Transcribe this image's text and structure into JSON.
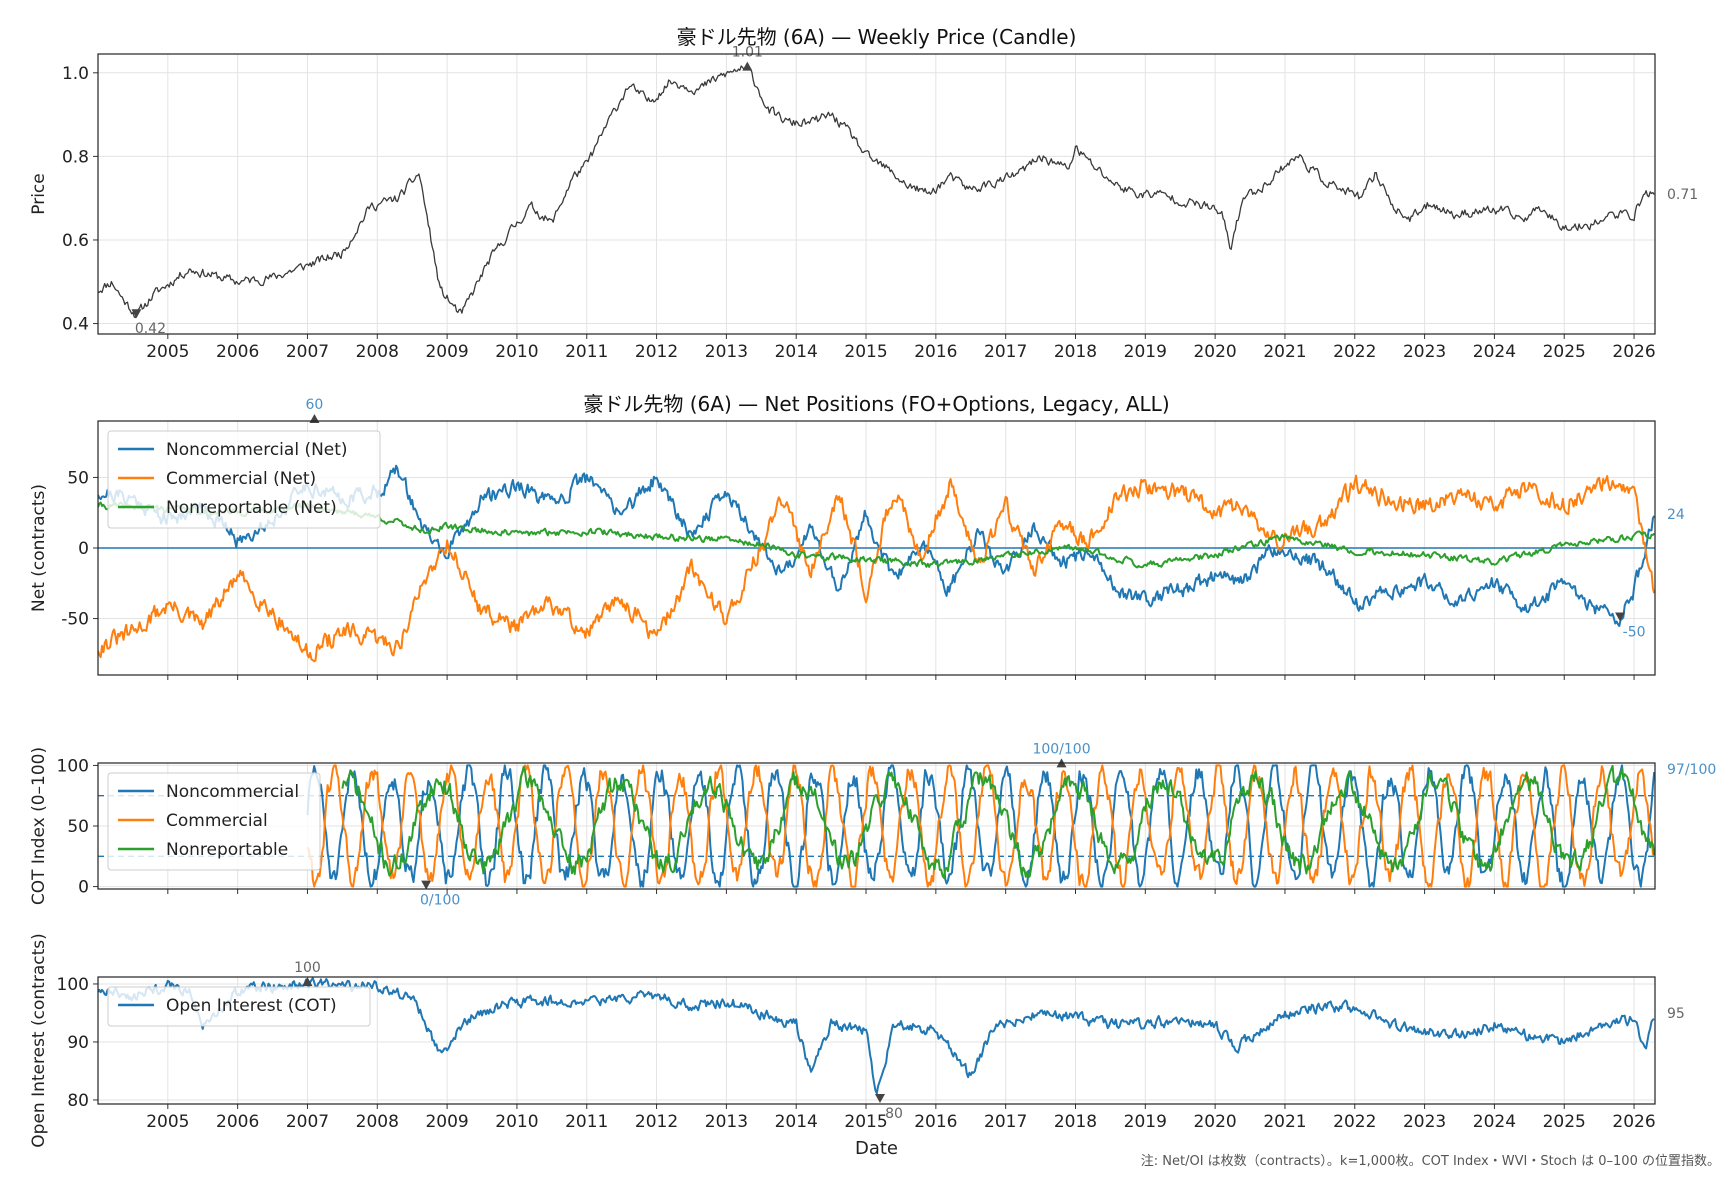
{
  "footnote": "注: Net/OI は枚数（contracts）。k=1,000枚。COT Index・WVI・Stoch は 0–100 の位置指数。",
  "colors": {
    "price": "#3a3a3a",
    "noncommercial": "#1f77b4",
    "commercial": "#ff7f0e",
    "nonreportable": "#2ca02c",
    "oi": "#1f77b4",
    "annotation": "#666666",
    "annotation_blue": "#4a90c8",
    "grid": "#e3e3e3"
  },
  "x_years": [
    "2005",
    "2006",
    "2007",
    "2008",
    "2009",
    "2010",
    "2011",
    "2012",
    "2013",
    "2014",
    "2015",
    "2016",
    "2017",
    "2018",
    "2019",
    "2020",
    "2021",
    "2022",
    "2023",
    "2024",
    "2025",
    "2026"
  ],
  "chart_data": [
    {
      "id": "price",
      "type": "line",
      "title": "豪ドル先物 (6A) — Weekly Price (Candle)",
      "xlabel": "",
      "ylabel": "Price",
      "xlim": [
        2004.0,
        2026.3
      ],
      "ylim": [
        0.375,
        1.045
      ],
      "yticks": [
        0.4,
        0.6,
        0.8,
        1.0
      ],
      "ytick_labels": [
        "0.4",
        "0.6",
        "0.8",
        "1.0"
      ],
      "series": [
        {
          "name": "Price",
          "color_key": "price",
          "noise": 0.012,
          "seed": 11,
          "x": [
            2004.0,
            2004.2,
            2004.35,
            2004.55,
            2004.8,
            2005.3,
            2006.0,
            2006.5,
            2007.0,
            2007.5,
            2007.9,
            2008.3,
            2008.6,
            2008.9,
            2009.2,
            2009.6,
            2009.9,
            2010.2,
            2010.5,
            2010.8,
            2011.0,
            2011.3,
            2011.6,
            2011.9,
            2012.2,
            2012.6,
            2012.9,
            2013.2,
            2013.35,
            2013.6,
            2013.9,
            2014.2,
            2014.5,
            2014.8,
            2015.0,
            2015.3,
            2015.6,
            2015.9,
            2016.2,
            2016.5,
            2016.9,
            2017.2,
            2017.5,
            2017.9,
            2018.0,
            2018.3,
            2018.6,
            2018.9,
            2019.2,
            2019.6,
            2019.9,
            2020.1,
            2020.22,
            2020.4,
            2020.7,
            2021.0,
            2021.2,
            2021.5,
            2021.8,
            2022.1,
            2022.3,
            2022.6,
            2022.8,
            2023.1,
            2023.4,
            2023.8,
            2024.1,
            2024.4,
            2024.7,
            2024.9,
            2025.1,
            2025.4,
            2025.7,
            2026.0,
            2026.15,
            2026.3
          ],
          "y": [
            0.48,
            0.5,
            0.46,
            0.42,
            0.47,
            0.53,
            0.5,
            0.51,
            0.54,
            0.57,
            0.68,
            0.7,
            0.76,
            0.48,
            0.42,
            0.55,
            0.62,
            0.68,
            0.64,
            0.75,
            0.78,
            0.88,
            0.97,
            0.93,
            0.98,
            0.96,
            0.99,
            1.01,
            1.0,
            0.91,
            0.88,
            0.88,
            0.9,
            0.85,
            0.8,
            0.77,
            0.73,
            0.71,
            0.75,
            0.72,
            0.74,
            0.76,
            0.8,
            0.77,
            0.82,
            0.77,
            0.73,
            0.71,
            0.71,
            0.69,
            0.68,
            0.66,
            0.58,
            0.7,
            0.73,
            0.78,
            0.8,
            0.75,
            0.72,
            0.7,
            0.76,
            0.67,
            0.65,
            0.69,
            0.66,
            0.67,
            0.67,
            0.65,
            0.68,
            0.64,
            0.63,
            0.64,
            0.66,
            0.66,
            0.71,
            0.71
          ]
        }
      ],
      "annotations": [
        {
          "text": "1.01",
          "x": 2013.3,
          "y": 1.01,
          "pos": "above"
        },
        {
          "text": "0.42",
          "x": 2004.55,
          "y": 0.42,
          "pos": "below"
        },
        {
          "text": "0.71",
          "x": 2026.3,
          "y": 0.71,
          "pos": "right"
        }
      ]
    },
    {
      "id": "net",
      "type": "line",
      "title": "豪ドル先物 (6A) — Net Positions (FO+Options, Legacy, ALL)",
      "xlabel": "",
      "ylabel": "Net (contracts)",
      "xlim": [
        2004.0,
        2026.3
      ],
      "ylim": [
        -90,
        90
      ],
      "yticks": [
        -50,
        0,
        50
      ],
      "ytick_labels": [
        "-50",
        "0",
        "50"
      ],
      "zero_line": 0,
      "legend": [
        "Noncommercial (Net)",
        "Commercial (Net)",
        "Nonreportable (Net)"
      ],
      "series": [
        {
          "name": "Noncommercial (Net)",
          "color_key": "noncommercial",
          "noise": 6,
          "seed": 21,
          "x": [
            2004.0,
            2004.5,
            2005.0,
            2005.5,
            2006.0,
            2006.5,
            2007.0,
            2007.5,
            2008.0,
            2008.3,
            2008.7,
            2009.0,
            2009.5,
            2010.0,
            2010.5,
            2011.0,
            2011.5,
            2012.0,
            2012.5,
            2013.0,
            2013.4,
            2013.8,
            2014.2,
            2014.6,
            2015.0,
            2015.4,
            2015.8,
            2016.2,
            2016.6,
            2017.0,
            2017.4,
            2017.8,
            2018.2,
            2018.6,
            2019.0,
            2019.5,
            2020.0,
            2020.4,
            2020.8,
            2021.2,
            2021.6,
            2022.0,
            2022.5,
            2023.0,
            2023.5,
            2024.0,
            2024.5,
            2025.0,
            2025.5,
            2025.8,
            2026.0,
            2026.3
          ],
          "y": [
            40,
            35,
            20,
            30,
            5,
            20,
            45,
            35,
            40,
            55,
            10,
            -5,
            35,
            45,
            30,
            50,
            25,
            50,
            10,
            40,
            10,
            -20,
            15,
            -30,
            25,
            -25,
            5,
            -30,
            10,
            -20,
            15,
            -10,
            -5,
            -30,
            -35,
            -30,
            -20,
            -25,
            0,
            -5,
            -15,
            -40,
            -30,
            -25,
            -35,
            -25,
            -45,
            -25,
            -45,
            -50,
            -30,
            24
          ]
        },
        {
          "name": "Commercial (Net)",
          "color_key": "commercial",
          "noise": 7,
          "seed": 31,
          "x": [
            2004.0,
            2004.5,
            2005.0,
            2005.5,
            2006.0,
            2006.5,
            2007.0,
            2007.5,
            2008.0,
            2008.3,
            2008.7,
            2009.0,
            2009.5,
            2010.0,
            2010.5,
            2011.0,
            2011.5,
            2012.0,
            2012.5,
            2013.0,
            2013.4,
            2013.8,
            2014.2,
            2014.6,
            2015.0,
            2015.4,
            2015.8,
            2016.2,
            2016.6,
            2017.0,
            2017.4,
            2017.8,
            2018.2,
            2018.6,
            2019.0,
            2019.5,
            2020.0,
            2020.4,
            2020.8,
            2021.2,
            2021.6,
            2022.0,
            2022.5,
            2023.0,
            2023.5,
            2024.0,
            2024.5,
            2025.0,
            2025.5,
            2025.8,
            2026.0,
            2026.3
          ],
          "y": [
            -70,
            -60,
            -40,
            -55,
            -20,
            -45,
            -75,
            -60,
            -65,
            -70,
            -20,
            5,
            -45,
            -55,
            -40,
            -60,
            -35,
            -65,
            -15,
            -50,
            -10,
            35,
            -15,
            40,
            -30,
            40,
            -5,
            45,
            -10,
            30,
            -15,
            15,
            5,
            35,
            45,
            40,
            25,
            30,
            5,
            10,
            20,
            45,
            35,
            30,
            40,
            30,
            45,
            30,
            45,
            50,
            35,
            -35
          ]
        },
        {
          "name": "Nonreportable (Net)",
          "color_key": "nonreportable",
          "noise": 2.5,
          "seed": 41,
          "x": [
            2004.0,
            2005.0,
            2006.0,
            2007.0,
            2008.0,
            2008.7,
            2009.0,
            2010.0,
            2011.0,
            2012.0,
            2013.0,
            2013.5,
            2014.0,
            2015.0,
            2016.0,
            2017.0,
            2018.0,
            2019.0,
            2020.0,
            2021.0,
            2022.0,
            2023.0,
            2024.0,
            2025.0,
            2026.0,
            2026.3
          ],
          "y": [
            30,
            28,
            25,
            30,
            22,
            12,
            15,
            10,
            12,
            8,
            6,
            2,
            -5,
            -8,
            -12,
            -6,
            0,
            -12,
            -5,
            8,
            -2,
            -5,
            -10,
            2,
            8,
            10
          ]
        }
      ],
      "annotations": [
        {
          "text": "60",
          "x": 2007.1,
          "y": 90,
          "pos": "above",
          "color_key": "annotation_blue"
        },
        {
          "text": "-50",
          "x": 2025.8,
          "y": -50,
          "pos": "below",
          "color_key": "annotation_blue"
        },
        {
          "text": "24",
          "x": 2026.3,
          "y": 24,
          "pos": "right",
          "color_key": "annotation_blue"
        }
      ]
    },
    {
      "id": "cot",
      "type": "line",
      "title": "",
      "xlabel": "",
      "ylabel": "COT Index (0–100)",
      "xlim": [
        2004.0,
        2026.3
      ],
      "ylim": [
        -2,
        102
      ],
      "yticks": [
        0,
        50,
        100
      ],
      "ytick_labels": [
        "0",
        "50",
        "100"
      ],
      "hlines": [
        25,
        75
      ],
      "legend": [
        "Noncommercial",
        "Commercial",
        "Nonreportable"
      ],
      "series": [
        {
          "name": "Noncommercial",
          "color_key": "noncommercial",
          "osc": true,
          "start": 2007.0,
          "noise": 18,
          "seed": 51,
          "period": 0.55,
          "phase": 0.3,
          "center": 50,
          "amp": 45
        },
        {
          "name": "Commercial",
          "color_key": "commercial",
          "osc": true,
          "start": 2007.0,
          "noise": 18,
          "seed": 61,
          "period": 0.55,
          "phase": 3.44,
          "center": 50,
          "amp": 45
        },
        {
          "name": "Nonreportable",
          "color_key": "nonreportable",
          "osc": true,
          "start": 2007.5,
          "noise": 16,
          "seed": 71,
          "period": 1.3,
          "phase": 1.2,
          "center": 52,
          "amp": 35
        }
      ],
      "annotations": [
        {
          "text": "100/100",
          "x": 2017.8,
          "y": 100,
          "pos": "above",
          "color_key": "annotation_blue"
        },
        {
          "text": "0/100",
          "x": 2008.7,
          "y": 0,
          "pos": "below",
          "color_key": "annotation_blue"
        },
        {
          "text": "97/100",
          "x": 2026.3,
          "y": 97,
          "pos": "right",
          "color_key": "annotation_blue"
        }
      ]
    },
    {
      "id": "oi",
      "type": "line",
      "title": "",
      "xlabel": "Date",
      "ylabel": "Open Interest (contracts)",
      "xlim": [
        2004.0,
        2026.3
      ],
      "ylim": [
        79.3,
        101.2
      ],
      "yticks": [
        80,
        90,
        100
      ],
      "ytick_labels": [
        "80",
        "90",
        "100"
      ],
      "legend": [
        "Open Interest (COT)"
      ],
      "series": [
        {
          "name": "Open Interest (COT)",
          "color_key": "oi",
          "noise": 1.0,
          "seed": 81,
          "x": [
            2004.0,
            2004.5,
            2005.0,
            2005.3,
            2005.5,
            2006.0,
            2007.0,
            2008.0,
            2008.5,
            2008.9,
            2009.3,
            2010.0,
            2011.0,
            2012.0,
            2012.5,
            2013.0,
            2013.5,
            2014.0,
            2014.2,
            2014.5,
            2015.0,
            2015.15,
            2015.4,
            2016.0,
            2016.5,
            2016.8,
            2017.0,
            2017.5,
            2018.0,
            2018.5,
            2019.0,
            2019.5,
            2020.0,
            2020.3,
            2021.0,
            2021.5,
            2022.0,
            2022.5,
            2023.0,
            2023.5,
            2024.0,
            2024.5,
            2025.0,
            2025.5,
            2026.0,
            2026.15,
            2026.3
          ],
          "y": [
            99,
            98,
            99.5,
            99,
            92,
            99,
            100,
            99.5,
            98,
            88,
            94,
            97,
            97,
            98,
            96,
            97,
            95,
            93,
            85,
            93,
            92,
            81,
            93,
            92,
            84,
            92,
            93,
            95,
            94,
            93,
            93,
            94,
            93,
            89,
            95,
            96,
            96,
            93,
            92,
            91,
            93,
            91,
            90,
            93,
            94,
            88,
            95
          ]
        }
      ],
      "annotations": [
        {
          "text": "100",
          "x": 2007.0,
          "y": 100,
          "pos": "above"
        },
        {
          "text": "80",
          "x": 2015.2,
          "y": 80,
          "pos": "below"
        },
        {
          "text": "95",
          "x": 2026.3,
          "y": 95,
          "pos": "right"
        }
      ]
    }
  ]
}
